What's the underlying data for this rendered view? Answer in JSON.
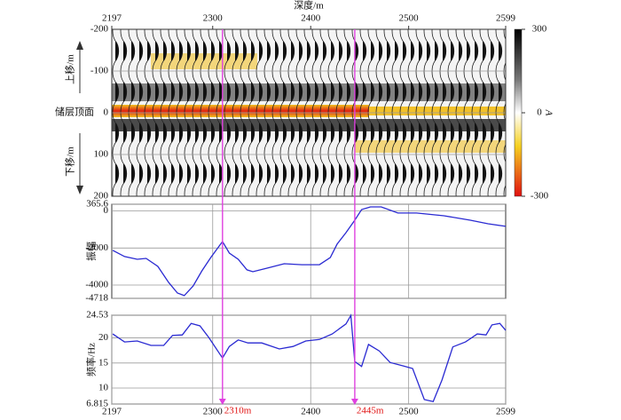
{
  "chart_data": [
    {
      "type": "seismic",
      "title": "深度/m",
      "xlim": [
        2197,
        2599
      ],
      "xticks": [
        2197,
        2300,
        2400,
        2500,
        2599
      ],
      "ylim": [
        200,
        -200
      ],
      "yticks": [
        -200,
        -100,
        0,
        100,
        200
      ],
      "up_label": "上移/m",
      "reference_label": "储层顶面",
      "down_label": "下移/m",
      "colorbar": {
        "label": "A",
        "lim": [
          -300,
          300
        ],
        "ticks": [
          300,
          0,
          -300
        ]
      }
    },
    {
      "type": "line",
      "ylabel": "振幅",
      "color": "#2a2ad2",
      "xlim": [
        2197,
        2599
      ],
      "xticks": [
        2300,
        2400,
        2500
      ],
      "xtick_labels": false,
      "ylim": [
        -4718,
        365.6
      ],
      "yticks": [
        365.6,
        0,
        -2000,
        -4000,
        -4718
      ],
      "x": [
        2198,
        2210,
        2223,
        2232,
        2244,
        2255,
        2264,
        2271,
        2280,
        2289,
        2298,
        2310,
        2317,
        2326,
        2335,
        2341,
        2355,
        2373,
        2391,
        2409,
        2420,
        2427,
        2436,
        2445,
        2452,
        2461,
        2472,
        2489,
        2508,
        2536,
        2563,
        2581,
        2599
      ],
      "values": [
        -2128,
        -2460,
        -2610,
        -2560,
        -2990,
        -3860,
        -4430,
        -4570,
        -4050,
        -3230,
        -2510,
        -1650,
        -2270,
        -2610,
        -3180,
        -3280,
        -3090,
        -2850,
        -2900,
        -2900,
        -2510,
        -1790,
        -1170,
        -500,
        80,
        220,
        220,
        -110,
        -110,
        -260,
        -500,
        -690,
        -830
      ]
    },
    {
      "type": "line",
      "ylabel": "频率/Hz",
      "color": "#2a2ad2",
      "xlim": [
        2197,
        2599
      ],
      "xticks": [
        2197,
        2300,
        2400,
        2500,
        2599
      ],
      "xtick_labels": true,
      "ylim": [
        6.815,
        24.53
      ],
      "yticks": [
        24.53,
        20,
        15,
        10,
        6.815
      ],
      "x": [
        2198,
        2210,
        2223,
        2237,
        2250,
        2259,
        2269,
        2278,
        2287,
        2296,
        2310,
        2317,
        2326,
        2336,
        2350,
        2368,
        2382,
        2395,
        2409,
        2422,
        2436,
        2441,
        2445,
        2452,
        2459,
        2470,
        2481,
        2495,
        2504,
        2516,
        2525,
        2534,
        2545,
        2558,
        2570,
        2579,
        2585,
        2593,
        2599
      ],
      "values": [
        20.8,
        19.2,
        19.4,
        18.5,
        18.5,
        20.5,
        20.6,
        22.9,
        22.4,
        20.1,
        16.0,
        18.3,
        19.6,
        19.0,
        19.0,
        17.8,
        18.3,
        19.4,
        19.7,
        20.8,
        22.8,
        24.5,
        15.3,
        14.3,
        18.7,
        17.4,
        15.1,
        14.4,
        13.9,
        7.7,
        7.3,
        11.6,
        18.2,
        19.2,
        20.8,
        20.6,
        22.6,
        22.9,
        21.5
      ],
      "annotations": [
        {
          "x": 2310,
          "label": "2310m"
        },
        {
          "x": 2445,
          "label": "2445m"
        }
      ]
    }
  ]
}
